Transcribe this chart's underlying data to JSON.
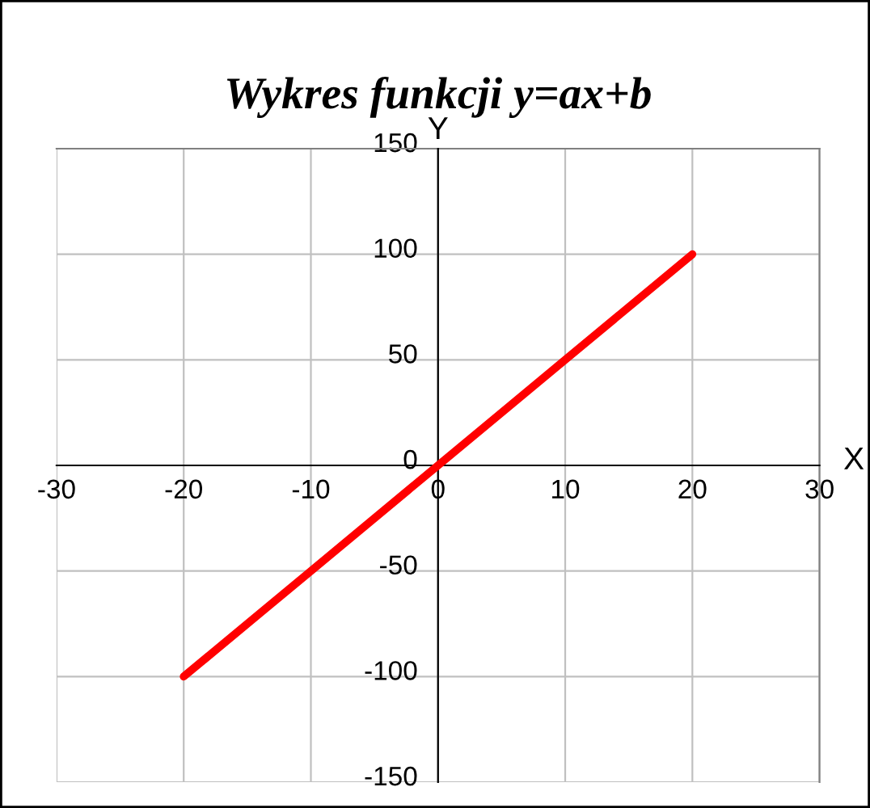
{
  "chart_data": {
    "type": "line",
    "title": "Wykres funkcji y=ax+b",
    "xlabel": "X",
    "ylabel": "Y",
    "x": [
      -20,
      -10,
      0,
      10,
      20
    ],
    "series": [
      {
        "color": "#ff0000",
        "values": [
          -100,
          -50,
          0,
          50,
          100
        ]
      }
    ],
    "xlim": [
      -30,
      30
    ],
    "xticks": [
      -30,
      -20,
      -10,
      0,
      10,
      20,
      30
    ],
    "ylim": [
      -150,
      150
    ],
    "yticks": [
      -150,
      -100,
      -50,
      0,
      50,
      100,
      150
    ],
    "grid": true,
    "marker": "none",
    "line_style": "solid"
  }
}
